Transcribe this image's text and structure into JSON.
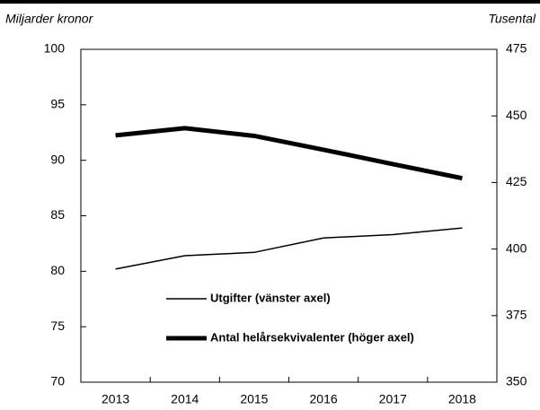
{
  "chart_data": {
    "type": "line",
    "y_label": "Miljarder kronor",
    "y2_label": "Tusental",
    "categories": [
      "2013",
      "2014",
      "2015",
      "2016",
      "2017",
      "2018"
    ],
    "series": [
      {
        "name": "Utgifter (vänster axel)",
        "color": "#000000",
        "values": [
          80.2,
          81.4,
          81.7,
          83.0,
          83.3,
          83.9
        ]
      },
      {
        "name": "Antal helårsekvivalenter (höger axel)",
        "color": "#000000",
        "axis": "y2",
        "values": [
          442.7,
          445.4,
          442.5,
          437.3,
          431.9,
          426.6
        ]
      }
    ],
    "ylim": [
      70,
      100
    ],
    "yticks": [
      70,
      75,
      80,
      85,
      90,
      95,
      100
    ],
    "y2lim": [
      350,
      475
    ],
    "y2ticks": [
      350,
      375,
      400,
      425,
      450,
      475
    ],
    "grid": false
  }
}
